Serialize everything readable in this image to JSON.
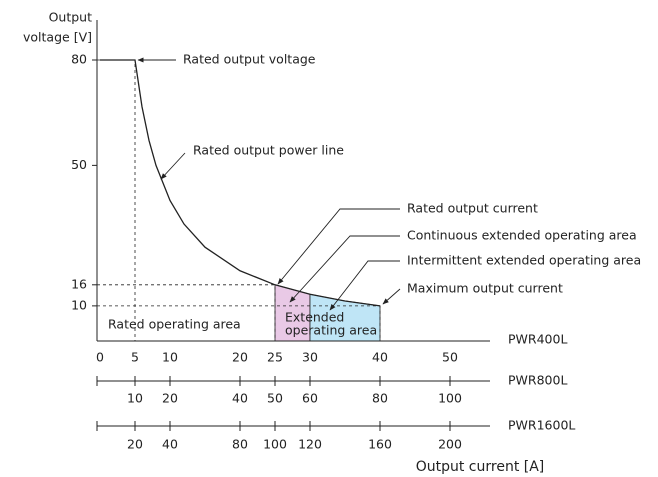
{
  "chart_data": {
    "type": "line",
    "ylabel_lines": [
      "Output",
      "voltage [V]"
    ],
    "xlabel": "Output current [A]",
    "xlim": [
      0,
      55
    ],
    "ylim": [
      0,
      80
    ],
    "yticks": [
      10,
      16,
      50,
      80
    ],
    "xticks": [
      0,
      5,
      10,
      20,
      25,
      30,
      40,
      50
    ],
    "axis_name": "PWR400L",
    "extra_axes": [
      {
        "name": "PWR800L",
        "xlim": [
          0,
          110
        ],
        "xticks": [
          10,
          20,
          40,
          50,
          60,
          80,
          100
        ]
      },
      {
        "name": "PWR1600L",
        "xlim": [
          0,
          220
        ],
        "xticks": [
          20,
          40,
          80,
          100,
          120,
          160,
          200
        ]
      }
    ],
    "x": [
      0,
      5,
      6,
      7,
      8,
      10,
      12,
      15,
      20,
      25,
      30,
      35,
      40
    ],
    "series": [
      {
        "color": "#222222",
        "values": [
          80,
          80,
          66.7,
          57.1,
          50,
          40,
          33.3,
          26.7,
          20,
          16,
          13.3,
          11.4,
          10
        ]
      }
    ],
    "regions": [
      {
        "from": 25,
        "to": 30,
        "color": "#e9c9e6"
      },
      {
        "from": 30,
        "to": 40,
        "color": "#bfe5f6"
      }
    ],
    "guides": [
      {
        "x": 5,
        "y": 80
      },
      {
        "x": 25,
        "y": 16
      },
      {
        "x": 40,
        "y": 10
      }
    ],
    "annotations": [
      "Rated output voltage",
      "Rated output power line",
      "Rated output current",
      "Continuous extended operating area",
      "Intermittent extended operating area",
      "Maximum output current"
    ],
    "area_labels": [
      {
        "lines": [
          "Rated operating area"
        ]
      },
      {
        "lines": [
          "Extended",
          "operating area"
        ]
      }
    ]
  }
}
